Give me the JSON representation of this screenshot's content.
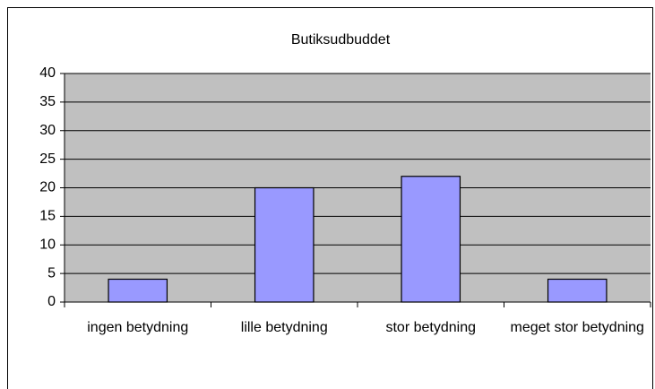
{
  "chart_data": {
    "type": "bar",
    "title": "Butiksudbuddet",
    "categories": [
      "ingen betydning",
      "lille betydning",
      "stor betydning",
      "meget stor betydning"
    ],
    "values": [
      4,
      20,
      22,
      4
    ],
    "color": "#9999ff",
    "ylim": [
      0,
      40
    ],
    "yticks": [
      0,
      5,
      10,
      15,
      20,
      25,
      30,
      35,
      40
    ],
    "grid": true
  }
}
